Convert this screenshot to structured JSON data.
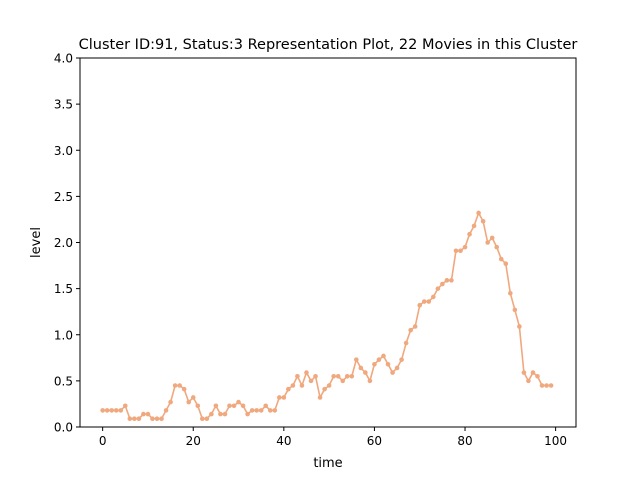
{
  "chart_data": {
    "type": "line",
    "title": "Cluster ID:91, Status:3 Representation Plot, 22 Movies in this Cluster",
    "xlabel": "time",
    "ylabel": "level",
    "xlim": [
      -5,
      104.5
    ],
    "ylim": [
      0,
      4
    ],
    "xticks": [
      0,
      20,
      40,
      60,
      80,
      100
    ],
    "yticks": [
      0.0,
      0.5,
      1.0,
      1.5,
      2.0,
      2.5,
      3.0,
      3.5,
      4.0
    ],
    "xtick_labels": [
      "0",
      "20",
      "40",
      "60",
      "80",
      "100"
    ],
    "ytick_labels": [
      "0.0",
      "0.5",
      "1.0",
      "1.5",
      "2.0",
      "2.5",
      "3.0",
      "3.5",
      "4.0"
    ],
    "grid": false,
    "legend": "none",
    "series": [
      {
        "color": "#f0a87e",
        "marker": "circle",
        "x": [
          0,
          1,
          2,
          3,
          4,
          5,
          6,
          7,
          8,
          9,
          10,
          11,
          12,
          13,
          14,
          15,
          16,
          17,
          18,
          19,
          20,
          21,
          22,
          23,
          24,
          25,
          26,
          27,
          28,
          29,
          30,
          31,
          32,
          33,
          34,
          35,
          36,
          37,
          38,
          39,
          40,
          41,
          42,
          43,
          44,
          45,
          46,
          47,
          48,
          49,
          50,
          51,
          52,
          53,
          54,
          55,
          56,
          57,
          58,
          59,
          60,
          61,
          62,
          63,
          64,
          65,
          66,
          67,
          68,
          69,
          70,
          71,
          72,
          73,
          74,
          75,
          76,
          77,
          78,
          79,
          80,
          81,
          82,
          83,
          84,
          85,
          86,
          87,
          88,
          89,
          90,
          91,
          92,
          93,
          94,
          95,
          96,
          97,
          98,
          99
        ],
        "y": [
          0.18,
          0.18,
          0.18,
          0.18,
          0.18,
          0.23,
          0.09,
          0.09,
          0.09,
          0.14,
          0.14,
          0.09,
          0.09,
          0.09,
          0.18,
          0.27,
          0.45,
          0.45,
          0.41,
          0.27,
          0.32,
          0.23,
          0.09,
          0.09,
          0.14,
          0.23,
          0.14,
          0.14,
          0.23,
          0.23,
          0.27,
          0.23,
          0.14,
          0.18,
          0.18,
          0.18,
          0.23,
          0.18,
          0.18,
          0.32,
          0.32,
          0.41,
          0.45,
          0.55,
          0.45,
          0.59,
          0.5,
          0.55,
          0.32,
          0.41,
          0.45,
          0.55,
          0.55,
          0.5,
          0.55,
          0.55,
          0.73,
          0.64,
          0.59,
          0.5,
          0.68,
          0.73,
          0.77,
          0.68,
          0.59,
          0.64,
          0.73,
          0.91,
          1.05,
          1.09,
          1.32,
          1.36,
          1.36,
          1.41,
          1.5,
          1.55,
          1.59,
          1.59,
          1.91,
          1.91,
          1.95,
          2.09,
          2.18,
          2.32,
          2.23,
          2.0,
          2.05,
          1.95,
          1.82,
          1.77,
          1.45,
          1.27,
          1.09,
          0.59,
          0.5,
          0.59,
          0.55,
          0.45,
          0.45,
          0.45
        ]
      }
    ]
  }
}
